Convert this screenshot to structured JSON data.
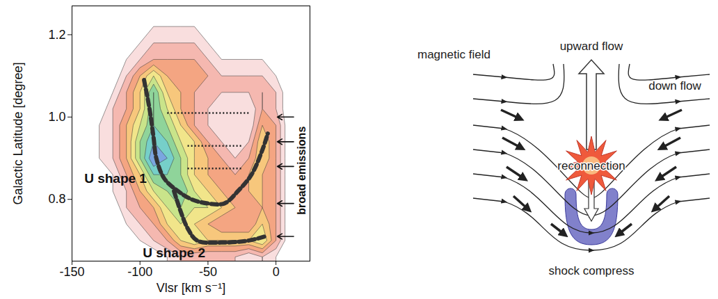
{
  "chart_data": {
    "type": "contour",
    "xlabel": "Vlsr [km s⁻¹]",
    "ylabel": "Galactic Latitude [degree]",
    "xlim": [
      -150,
      25
    ],
    "ylim": [
      0.65,
      1.27
    ],
    "xticks": [
      -150,
      -100,
      -50,
      0
    ],
    "yticks": [
      0.8,
      {
        "value": 1,
        "label": "1.0"
      },
      1.2
    ],
    "grid": false,
    "grid_x": [
      -150,
      -140,
      -130,
      -120,
      -110,
      -100,
      -90,
      -80,
      -70,
      -60,
      -50,
      -40,
      -30,
      -20,
      -10,
      0,
      10
    ],
    "grid_y": [
      0.66,
      0.7,
      0.74,
      0.78,
      0.82,
      0.86,
      0.9,
      0.94,
      0.98,
      1.02,
      1.06,
      1.1,
      1.14,
      1.18,
      1.22,
      1.26
    ],
    "values": [
      [
        0,
        0,
        0,
        0,
        0,
        0,
        0,
        1,
        2,
        2,
        2,
        2,
        2,
        1,
        2,
        1,
        0
      ],
      [
        0,
        0,
        0,
        0,
        0,
        1,
        2,
        3,
        5,
        6,
        5,
        5,
        5,
        5,
        6,
        3,
        0
      ],
      [
        0,
        0,
        0,
        0,
        1,
        2,
        3,
        5,
        6,
        5,
        4,
        3,
        3,
        3,
        5,
        3,
        0
      ],
      [
        0,
        0,
        0,
        0,
        2,
        3,
        4,
        6,
        7,
        6,
        6,
        5,
        4,
        3,
        4,
        3,
        0
      ],
      [
        0,
        0,
        0,
        1,
        2,
        4,
        6,
        7,
        8,
        6,
        5,
        4,
        3,
        4,
        4,
        3,
        0
      ],
      [
        0,
        0,
        0,
        1,
        3,
        5,
        8,
        8,
        7,
        5,
        4,
        3,
        3,
        4,
        4,
        3,
        0
      ],
      [
        0,
        0,
        1,
        2,
        4,
        7,
        10,
        9,
        7,
        5,
        4,
        3,
        2,
        3,
        5,
        3,
        0
      ],
      [
        0,
        0,
        1,
        2,
        4,
        7,
        9,
        8,
        6,
        5,
        3,
        2,
        1,
        2,
        5,
        3,
        0
      ],
      [
        0,
        0,
        1,
        2,
        4,
        6,
        8,
        7,
        5,
        3,
        2,
        1,
        1,
        1,
        4,
        3,
        0
      ],
      [
        0,
        0,
        0,
        2,
        3,
        5,
        8,
        6,
        4,
        3,
        2,
        1,
        1,
        1,
        3,
        2,
        0
      ],
      [
        0,
        0,
        0,
        1,
        3,
        5,
        8,
        5,
        4,
        3,
        2,
        2,
        2,
        2,
        3,
        2,
        0
      ],
      [
        0,
        0,
        0,
        0,
        2,
        4,
        6,
        4,
        3,
        3,
        3,
        2,
        2,
        2,
        2,
        1,
        0
      ],
      [
        0,
        0,
        0,
        0,
        1,
        2,
        3,
        3,
        3,
        3,
        2,
        1,
        1,
        1,
        1,
        0,
        0
      ],
      [
        0,
        0,
        0,
        0,
        0,
        1,
        2,
        2,
        2,
        2,
        1,
        0,
        0,
        0,
        0,
        0,
        0
      ],
      [
        0,
        0,
        0,
        0,
        0,
        0,
        1,
        1,
        1,
        1,
        0,
        0,
        0,
        0,
        0,
        0,
        0
      ],
      [
        0,
        0,
        0,
        0,
        0,
        0,
        0,
        0,
        0,
        0,
        0,
        0,
        0,
        0,
        0,
        0,
        0
      ]
    ],
    "levels": [
      1,
      2,
      3,
      4,
      5,
      6,
      7,
      8,
      9,
      10
    ],
    "colors": [
      "#f9dede",
      "#f5b8b0",
      "#f4a582",
      "#f7c77c",
      "#f1e58a",
      "#c9e48a",
      "#8fd49a",
      "#76cfc9",
      "#7aa6e0",
      "#8a7fd6"
    ],
    "series": [
      {
        "x": [
          -97,
          -93,
          -90,
          -88,
          -82,
          -72,
          -62,
          -50,
          -38,
          -28,
          -18,
          -10,
          -6
        ],
        "y": [
          1.09,
          1.02,
          0.95,
          0.9,
          0.85,
          0.82,
          0.8,
          0.79,
          0.79,
          0.82,
          0.86,
          0.92,
          0.96
        ],
        "color": "#333333",
        "line_style": "dashed"
      },
      {
        "x": [
          -75,
          -70,
          -65,
          -58,
          -40,
          -20,
          -8
        ],
        "y": [
          0.82,
          0.77,
          0.73,
          0.7,
          0.695,
          0.7,
          0.71
        ],
        "color": "#333333",
        "line_style": "dashed"
      }
    ],
    "dotted_lines": [
      {
        "y": 1.01,
        "x": [
          -80,
          -20
        ],
        "line_style": "dotted"
      },
      {
        "y": 0.93,
        "x": [
          -65,
          -25
        ],
        "line_style": "dotted"
      },
      {
        "y": 0.875,
        "x": [
          -65,
          -25
        ],
        "line_style": "dotted"
      }
    ],
    "arrows": {
      "x": [
        13,
        1
      ],
      "y": [
        1.0,
        0.94,
        0.88,
        0.79,
        0.71
      ]
    },
    "annotations": [
      {
        "text": "U shape 1",
        "x": -118,
        "y": 0.85
      },
      {
        "text": "U shape 2",
        "x": -75,
        "y": 0.67
      }
    ],
    "side_label": {
      "text": "broad emissions",
      "x": 19,
      "y": 0.87
    }
  },
  "diagram": {
    "labels": {
      "magnetic_field": "magnetic field",
      "upward_flow": "upward flow",
      "down_flow": "down flow",
      "reconnection": "reconnection",
      "shock_compress": "shock compress"
    }
  }
}
